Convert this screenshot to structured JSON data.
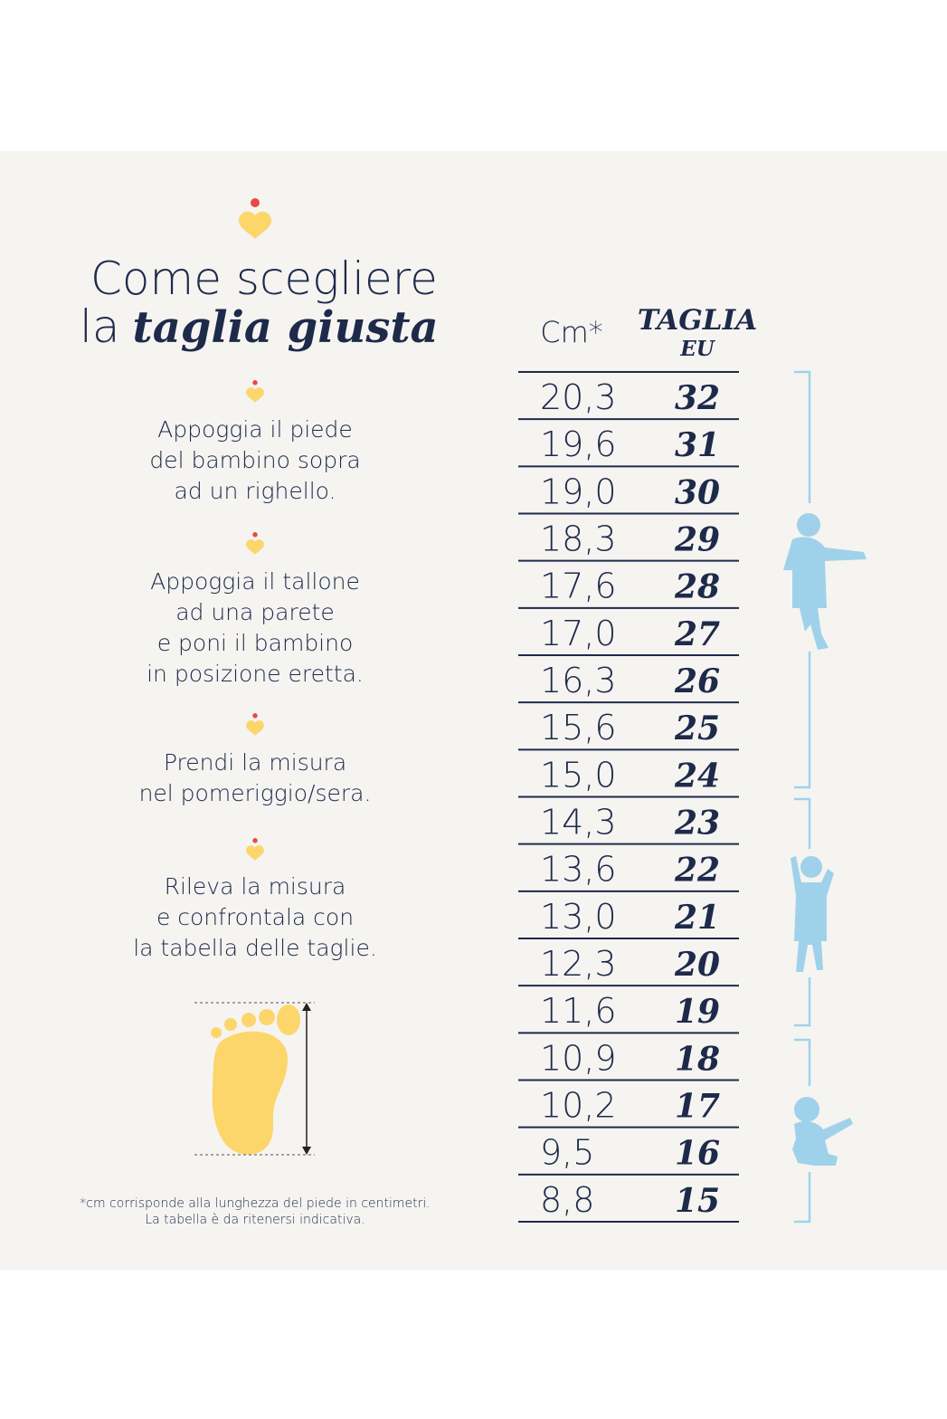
{
  "title": {
    "line1": "Come scegliere",
    "line2_prefix": "la",
    "line2_emphasis": "taglia giusta"
  },
  "steps": [
    {
      "lines": [
        "Appoggia il piede",
        "del bambino sopra",
        "ad un righello."
      ]
    },
    {
      "lines": [
        "Appoggia il tallone",
        "ad una parete",
        "e poni il bambino",
        "in posizione eretta."
      ]
    },
    {
      "lines": [
        "Prendi la misura",
        "nel pomeriggio/sera."
      ]
    },
    {
      "lines": [
        "Rileva la misura",
        "e confrontala con",
        "la tabella delle taglie."
      ]
    }
  ],
  "table": {
    "header": {
      "cm": "Cm*",
      "size": "TAGLIA",
      "size_unit": "EU"
    },
    "rows": [
      [
        "20,3",
        "32"
      ],
      [
        "19,6",
        "31"
      ],
      [
        "19,0",
        "30"
      ],
      [
        "18,3",
        "29"
      ],
      [
        "17,6",
        "28"
      ],
      [
        "17,0",
        "27"
      ],
      [
        "16,3",
        "26"
      ],
      [
        "15,6",
        "25"
      ],
      [
        "15,0",
        "24"
      ],
      [
        "14,3",
        "23"
      ],
      [
        "13,6",
        "22"
      ],
      [
        "13,0",
        "21"
      ],
      [
        "12,3",
        "20"
      ],
      [
        "11,6",
        "19"
      ],
      [
        "10,9",
        "18"
      ],
      [
        "10,2",
        "17"
      ],
      [
        "9,5",
        "16"
      ],
      [
        "8,8",
        "15"
      ]
    ]
  },
  "footnote": [
    "*cm corrisponde alla lunghezza del piede in centimetri.",
    "La tabella è da ritenersi indicativa."
  ]
}
